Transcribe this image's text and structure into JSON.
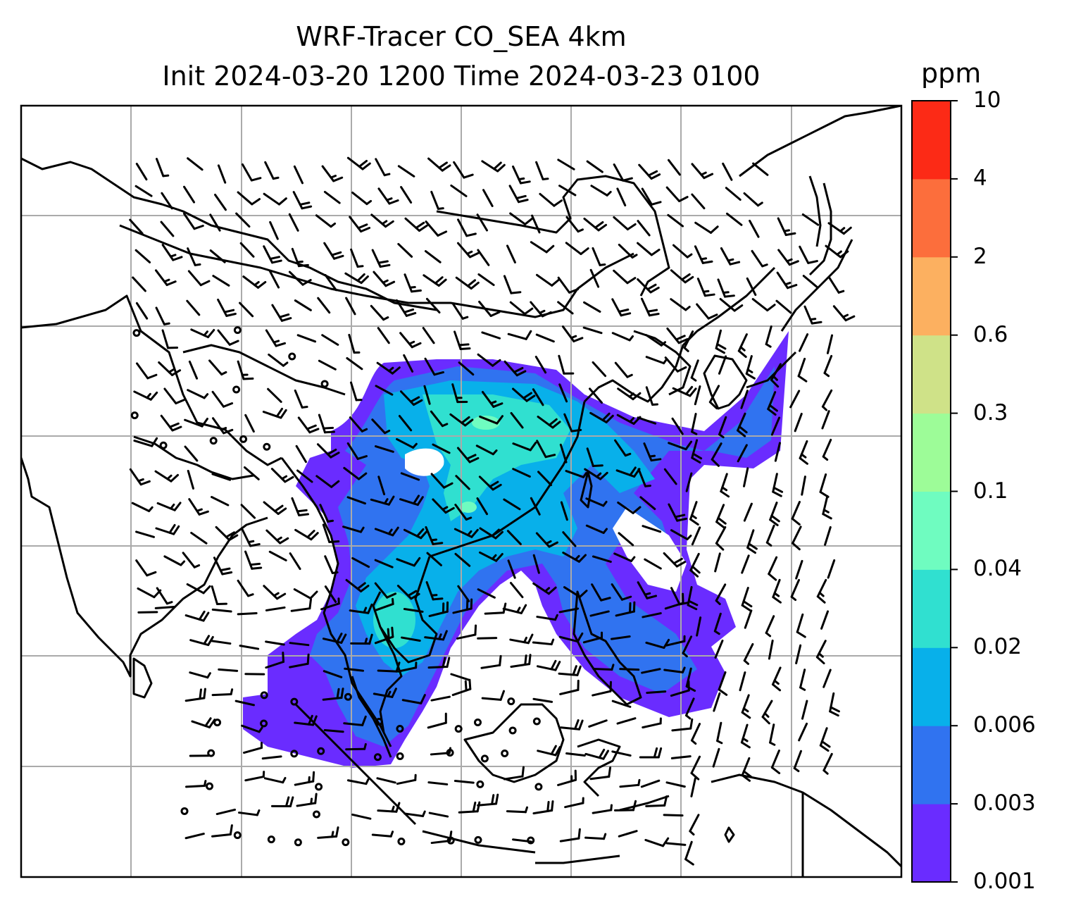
{
  "title": {
    "line1": "WRF-Tracer CO_SEA 4km",
    "line2": "Init 2024-03-20 1200 Time 2024-03-23 0100"
  },
  "colorbar": {
    "unit": "ppm",
    "ticks": [
      "0.001",
      "0.003",
      "0.006",
      "0.02",
      "0.04",
      "0.1",
      "0.3",
      "0.6",
      "2",
      "4",
      "10"
    ],
    "colors": [
      "#6a2cff",
      "#3073f0",
      "#08b0ea",
      "#30e0d0",
      "#6ffcc0",
      "#9dfc98",
      "#cfe288",
      "#fcb060",
      "#fc6e3c",
      "#fc2a16"
    ]
  },
  "map": {
    "grid": "on",
    "background": "#ffffff",
    "coastline_color": "#000000",
    "gridline_color": "#aaaaaa",
    "barb_color": "#000000"
  }
}
